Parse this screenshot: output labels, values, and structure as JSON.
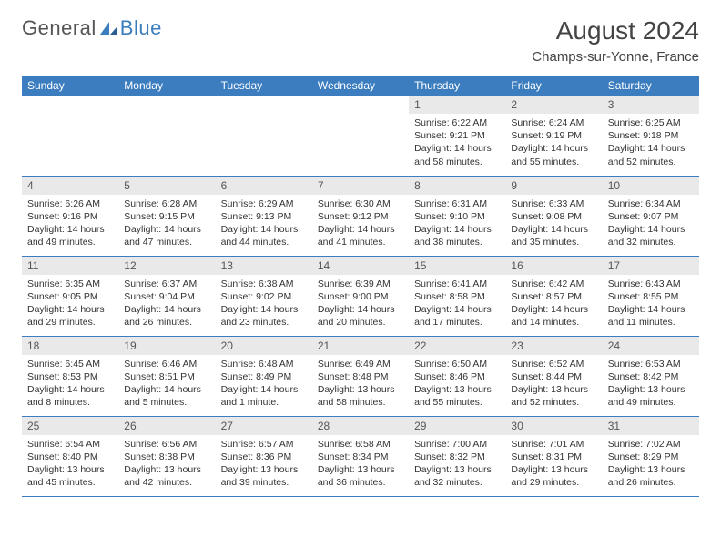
{
  "brand": {
    "name_a": "General",
    "name_b": "Blue"
  },
  "title": "August 2024",
  "location": "Champs-sur-Yonne, France",
  "colors": {
    "header_blue": "#3b7dbf",
    "daynum_bg": "#e9e9e9",
    "text": "#333333",
    "bg": "#ffffff"
  },
  "weekdays": [
    "Sunday",
    "Monday",
    "Tuesday",
    "Wednesday",
    "Thursday",
    "Friday",
    "Saturday"
  ],
  "weeks": [
    [
      {
        "empty": true
      },
      {
        "empty": true
      },
      {
        "empty": true
      },
      {
        "empty": true
      },
      {
        "day": "1",
        "sunrise": "Sunrise: 6:22 AM",
        "sunset": "Sunset: 9:21 PM",
        "daylight": "Daylight: 14 hours and 58 minutes."
      },
      {
        "day": "2",
        "sunrise": "Sunrise: 6:24 AM",
        "sunset": "Sunset: 9:19 PM",
        "daylight": "Daylight: 14 hours and 55 minutes."
      },
      {
        "day": "3",
        "sunrise": "Sunrise: 6:25 AM",
        "sunset": "Sunset: 9:18 PM",
        "daylight": "Daylight: 14 hours and 52 minutes."
      }
    ],
    [
      {
        "day": "4",
        "sunrise": "Sunrise: 6:26 AM",
        "sunset": "Sunset: 9:16 PM",
        "daylight": "Daylight: 14 hours and 49 minutes."
      },
      {
        "day": "5",
        "sunrise": "Sunrise: 6:28 AM",
        "sunset": "Sunset: 9:15 PM",
        "daylight": "Daylight: 14 hours and 47 minutes."
      },
      {
        "day": "6",
        "sunrise": "Sunrise: 6:29 AM",
        "sunset": "Sunset: 9:13 PM",
        "daylight": "Daylight: 14 hours and 44 minutes."
      },
      {
        "day": "7",
        "sunrise": "Sunrise: 6:30 AM",
        "sunset": "Sunset: 9:12 PM",
        "daylight": "Daylight: 14 hours and 41 minutes."
      },
      {
        "day": "8",
        "sunrise": "Sunrise: 6:31 AM",
        "sunset": "Sunset: 9:10 PM",
        "daylight": "Daylight: 14 hours and 38 minutes."
      },
      {
        "day": "9",
        "sunrise": "Sunrise: 6:33 AM",
        "sunset": "Sunset: 9:08 PM",
        "daylight": "Daylight: 14 hours and 35 minutes."
      },
      {
        "day": "10",
        "sunrise": "Sunrise: 6:34 AM",
        "sunset": "Sunset: 9:07 PM",
        "daylight": "Daylight: 14 hours and 32 minutes."
      }
    ],
    [
      {
        "day": "11",
        "sunrise": "Sunrise: 6:35 AM",
        "sunset": "Sunset: 9:05 PM",
        "daylight": "Daylight: 14 hours and 29 minutes."
      },
      {
        "day": "12",
        "sunrise": "Sunrise: 6:37 AM",
        "sunset": "Sunset: 9:04 PM",
        "daylight": "Daylight: 14 hours and 26 minutes."
      },
      {
        "day": "13",
        "sunrise": "Sunrise: 6:38 AM",
        "sunset": "Sunset: 9:02 PM",
        "daylight": "Daylight: 14 hours and 23 minutes."
      },
      {
        "day": "14",
        "sunrise": "Sunrise: 6:39 AM",
        "sunset": "Sunset: 9:00 PM",
        "daylight": "Daylight: 14 hours and 20 minutes."
      },
      {
        "day": "15",
        "sunrise": "Sunrise: 6:41 AM",
        "sunset": "Sunset: 8:58 PM",
        "daylight": "Daylight: 14 hours and 17 minutes."
      },
      {
        "day": "16",
        "sunrise": "Sunrise: 6:42 AM",
        "sunset": "Sunset: 8:57 PM",
        "daylight": "Daylight: 14 hours and 14 minutes."
      },
      {
        "day": "17",
        "sunrise": "Sunrise: 6:43 AM",
        "sunset": "Sunset: 8:55 PM",
        "daylight": "Daylight: 14 hours and 11 minutes."
      }
    ],
    [
      {
        "day": "18",
        "sunrise": "Sunrise: 6:45 AM",
        "sunset": "Sunset: 8:53 PM",
        "daylight": "Daylight: 14 hours and 8 minutes."
      },
      {
        "day": "19",
        "sunrise": "Sunrise: 6:46 AM",
        "sunset": "Sunset: 8:51 PM",
        "daylight": "Daylight: 14 hours and 5 minutes."
      },
      {
        "day": "20",
        "sunrise": "Sunrise: 6:48 AM",
        "sunset": "Sunset: 8:49 PM",
        "daylight": "Daylight: 14 hours and 1 minute."
      },
      {
        "day": "21",
        "sunrise": "Sunrise: 6:49 AM",
        "sunset": "Sunset: 8:48 PM",
        "daylight": "Daylight: 13 hours and 58 minutes."
      },
      {
        "day": "22",
        "sunrise": "Sunrise: 6:50 AM",
        "sunset": "Sunset: 8:46 PM",
        "daylight": "Daylight: 13 hours and 55 minutes."
      },
      {
        "day": "23",
        "sunrise": "Sunrise: 6:52 AM",
        "sunset": "Sunset: 8:44 PM",
        "daylight": "Daylight: 13 hours and 52 minutes."
      },
      {
        "day": "24",
        "sunrise": "Sunrise: 6:53 AM",
        "sunset": "Sunset: 8:42 PM",
        "daylight": "Daylight: 13 hours and 49 minutes."
      }
    ],
    [
      {
        "day": "25",
        "sunrise": "Sunrise: 6:54 AM",
        "sunset": "Sunset: 8:40 PM",
        "daylight": "Daylight: 13 hours and 45 minutes."
      },
      {
        "day": "26",
        "sunrise": "Sunrise: 6:56 AM",
        "sunset": "Sunset: 8:38 PM",
        "daylight": "Daylight: 13 hours and 42 minutes."
      },
      {
        "day": "27",
        "sunrise": "Sunrise: 6:57 AM",
        "sunset": "Sunset: 8:36 PM",
        "daylight": "Daylight: 13 hours and 39 minutes."
      },
      {
        "day": "28",
        "sunrise": "Sunrise: 6:58 AM",
        "sunset": "Sunset: 8:34 PM",
        "daylight": "Daylight: 13 hours and 36 minutes."
      },
      {
        "day": "29",
        "sunrise": "Sunrise: 7:00 AM",
        "sunset": "Sunset: 8:32 PM",
        "daylight": "Daylight: 13 hours and 32 minutes."
      },
      {
        "day": "30",
        "sunrise": "Sunrise: 7:01 AM",
        "sunset": "Sunset: 8:31 PM",
        "daylight": "Daylight: 13 hours and 29 minutes."
      },
      {
        "day": "31",
        "sunrise": "Sunrise: 7:02 AM",
        "sunset": "Sunset: 8:29 PM",
        "daylight": "Daylight: 13 hours and 26 minutes."
      }
    ]
  ]
}
